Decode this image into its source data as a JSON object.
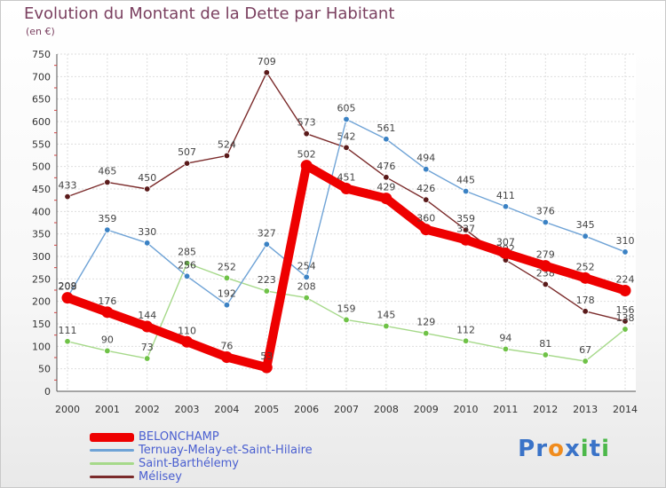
{
  "title": "Evolution du Montant de la Dette par Habitant",
  "subtitle": "(en €)",
  "brand": {
    "text": "Proxiti",
    "letter_colors": [
      "#3a73c8",
      "#3a73c8",
      "#f08c1e",
      "#3a73c8",
      "#4cb84a",
      "#3a73c8",
      "#4cb84a"
    ]
  },
  "chart_data": {
    "type": "line",
    "title": "Evolution du Montant de la Dette par Habitant",
    "subtitle": "(en €)",
    "xlabel": "",
    "ylabel": "",
    "categories": [
      "2000",
      "2001",
      "2002",
      "2003",
      "2004",
      "2005",
      "2006",
      "2007",
      "2008",
      "2009",
      "2010",
      "2011",
      "2012",
      "2013",
      "2014"
    ],
    "ylim": [
      0,
      750
    ],
    "yticks": [
      0,
      50,
      100,
      150,
      200,
      250,
      300,
      350,
      400,
      450,
      500,
      550,
      600,
      650,
      700,
      750
    ],
    "grid": true,
    "legend_position": "bottom-left",
    "series": [
      {
        "name": "Mélisey",
        "color": "#7b2b2b",
        "marker": "#5a1a1a",
        "emphasis": false,
        "values": [
          433,
          465,
          450,
          507,
          524,
          709,
          573,
          542,
          476,
          426,
          359,
          292,
          238,
          178,
          156
        ]
      },
      {
        "name": "Saint-Barthélemy",
        "color": "#a6d98a",
        "marker": "#6fc247",
        "emphasis": false,
        "values": [
          111,
          90,
          73,
          285,
          252,
          223,
          208,
          159,
          145,
          129,
          112,
          94,
          81,
          67,
          138
        ]
      },
      {
        "name": "Ternuay-Melay-et-Saint-Hilaire",
        "color": "#6fa3d6",
        "marker": "#3b82c4",
        "emphasis": false,
        "values": [
          209,
          359,
          330,
          256,
          192,
          327,
          254,
          605,
          561,
          494,
          445,
          411,
          376,
          345,
          310
        ]
      },
      {
        "name": "BELONCHAMP",
        "color": "#ee0000",
        "marker": "#ee0000",
        "emphasis": true,
        "values": [
          208,
          176,
          144,
          110,
          76,
          53,
          502,
          451,
          429,
          360,
          337,
          307,
          279,
          252,
          224
        ]
      }
    ],
    "legend_order": [
      "BELONCHAMP",
      "Ternuay-Melay-et-Saint-Hilaire",
      "Saint-Barthélemy",
      "Mélisey"
    ]
  }
}
